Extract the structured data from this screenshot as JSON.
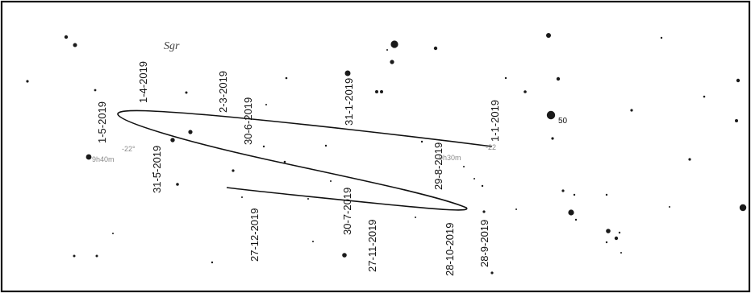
{
  "constellation": "Sgr",
  "coord_labels": [
    "9h40m",
    "-22°",
    "9h30m",
    "-22"
  ],
  "star_label": "50",
  "dates": [
    "1-1-2019",
    "31-1-2019",
    "2-3-2019",
    "1-4-2019",
    "1-5-2019",
    "31-5-2019",
    "30-6-2019",
    "30-7-2019",
    "29-8-2019",
    "28-9-2019",
    "28-10-2019",
    "27-11-2019",
    "27-12-2019"
  ],
  "colors": {
    "ink": "#111111",
    "grid_label": "#8a8a8a",
    "background": "#ffffff"
  }
}
